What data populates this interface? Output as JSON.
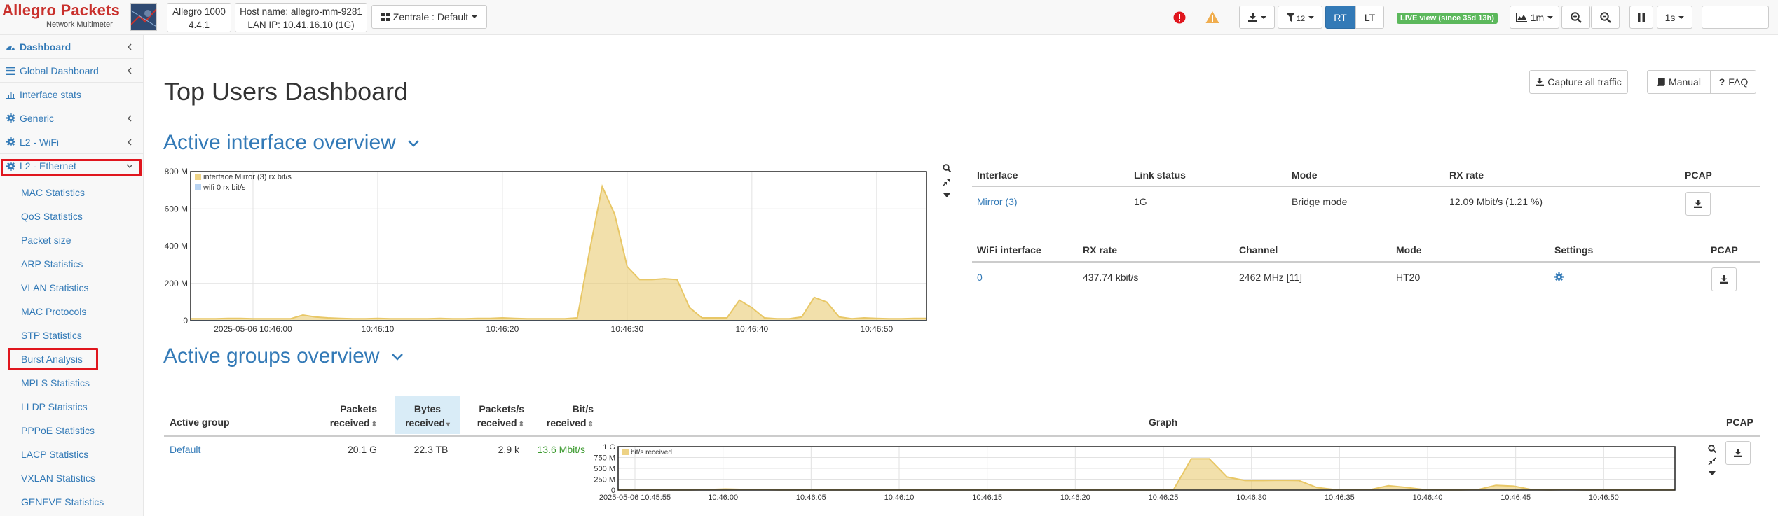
{
  "app": {
    "logo_title": "Allegro Packets",
    "logo_subtitle": "Network Multimeter",
    "device_model": "Allegro 1000",
    "device_version": "4.4.1",
    "host_name": "Host name: allegro-mm-9281",
    "lan_ip": "LAN IP: 10.41.16.10 (1G)",
    "zone_label": "Zentrale : Default"
  },
  "toolbar": {
    "filter_count": "12",
    "rt_label": "RT",
    "lt_label": "LT",
    "live_label": "LIVE view (since 35d 13h)",
    "range_label": "1m",
    "interval_label": "1s",
    "search_value": "",
    "error_color": "#e0161e",
    "warning_color": "#f0ad4e"
  },
  "sidebar": {
    "items": [
      {
        "label": "Dashboard",
        "icon": "dashboard-icon",
        "bold": true
      },
      {
        "label": "Global Dashboard",
        "icon": "list-icon"
      },
      {
        "label": "Interface stats",
        "icon": "bar-chart-icon"
      },
      {
        "label": "Generic",
        "icon": "gear-icon"
      },
      {
        "label": "L2 - WiFi",
        "icon": "gear-icon"
      },
      {
        "label": "L2 - Ethernet",
        "icon": "gear-icon"
      }
    ],
    "subitems": [
      "MAC Statistics",
      "QoS Statistics",
      "Packet size",
      "ARP Statistics",
      "VLAN Statistics",
      "MAC Protocols",
      "STP Statistics",
      "Burst Analysis",
      "MPLS Statistics",
      "LLDP Statistics",
      "PPPoE Statistics",
      "LACP Statistics",
      "VXLAN Statistics",
      "GENEVE Statistics"
    ],
    "highlight_color": "#e0161e"
  },
  "main": {
    "title": "Top Users Dashboard",
    "buttons": {
      "capture": "Capture all traffic",
      "manual": "Manual",
      "faq": "FAQ"
    },
    "interface_section": {
      "title": "Active interface overview",
      "table": {
        "headers": [
          "Interface",
          "Link status",
          "Mode",
          "RX rate",
          "PCAP"
        ],
        "rows": [
          {
            "interface": "Mirror (3)",
            "link": "1G",
            "mode": "Bridge mode",
            "rx": "12.09 Mbit/s (1.21 %)"
          }
        ]
      },
      "wifi_table": {
        "headers": [
          "WiFi interface",
          "RX rate",
          "Channel",
          "Mode",
          "Settings",
          "PCAP"
        ],
        "rows": [
          {
            "interface": "0",
            "rx": "437.74 kbit/s",
            "channel": "2462 MHz [11]",
            "mode": "HT20"
          }
        ]
      }
    },
    "groups_section": {
      "title": "Active groups overview",
      "headers": {
        "group": "Active group",
        "packets_l1": "Packets",
        "packets_l2": "received",
        "bytes_l1": "Bytes",
        "bytes_l2": "received",
        "pps_l1": "Packets/s",
        "pps_l2": "received",
        "bits_l1": "Bit/s",
        "bits_l2": "received",
        "graph": "Graph",
        "pcap": "PCAP"
      },
      "rows": [
        {
          "group": "Default",
          "packets": "20.1 G",
          "bytes": "22.3 TB",
          "pps": "2.9 k",
          "bits": "13.6 Mbit/s"
        }
      ],
      "bits_color": "#3c9a2f"
    }
  },
  "chart_data": [
    {
      "type": "area",
      "title": "",
      "legend": [
        "interface Mirror (3) rx bit/s",
        "wifi 0 rx bit/s"
      ],
      "legend_position": "top-left",
      "grid": true,
      "y_tick_labels": [
        "0",
        "200 M",
        "400 M",
        "600 M",
        "800 M"
      ],
      "ylim": [
        0,
        800000000
      ],
      "x_tick_labels": [
        "2025-05-06 10:46:00",
        "10:46:10",
        "10:46:20",
        "10:46:30",
        "10:46:40",
        "10:46:50"
      ],
      "x": [
        "10:45:55",
        "10:45:56",
        "10:45:57",
        "10:45:58",
        "10:45:59",
        "10:46:00",
        "10:46:01",
        "10:46:02",
        "10:46:03",
        "10:46:04",
        "10:46:05",
        "10:46:06",
        "10:46:07",
        "10:46:08",
        "10:46:09",
        "10:46:10",
        "10:46:11",
        "10:46:12",
        "10:46:13",
        "10:46:14",
        "10:46:15",
        "10:46:16",
        "10:46:17",
        "10:46:18",
        "10:46:19",
        "10:46:20",
        "10:46:21",
        "10:46:22",
        "10:46:23",
        "10:46:24",
        "10:46:25",
        "10:46:26",
        "10:46:27",
        "10:46:28",
        "10:46:29",
        "10:46:30",
        "10:46:31",
        "10:46:32",
        "10:46:33",
        "10:46:34",
        "10:46:35",
        "10:46:36",
        "10:46:37",
        "10:46:38",
        "10:46:39",
        "10:46:40",
        "10:46:41",
        "10:46:42",
        "10:46:43",
        "10:46:44",
        "10:46:45",
        "10:46:46",
        "10:46:47",
        "10:46:48",
        "10:46:49",
        "10:46:50",
        "10:46:51",
        "10:46:52",
        "10:46:53",
        "10:46:54"
      ],
      "series": [
        {
          "name": "interface Mirror (3) rx bit/s",
          "color": "#e8c766",
          "values": [
            10,
            10,
            10,
            12,
            12,
            10,
            10,
            10,
            10,
            30,
            20,
            15,
            12,
            10,
            10,
            12,
            10,
            10,
            10,
            10,
            12,
            10,
            10,
            12,
            12,
            15,
            12,
            10,
            10,
            10,
            10,
            15,
            380,
            720,
            570,
            290,
            220,
            220,
            225,
            220,
            70,
            15,
            15,
            15,
            110,
            70,
            15,
            10,
            10,
            20,
            125,
            100,
            20,
            10,
            15,
            12,
            10,
            10,
            12,
            12
          ],
          "unit": "Mbit/s"
        },
        {
          "name": "wifi 0 rx bit/s",
          "color": "#a6c8ef",
          "values": [
            0,
            0,
            0,
            0,
            0,
            0,
            0,
            0,
            0,
            0,
            0,
            0,
            0,
            0,
            0,
            0,
            0,
            0,
            0,
            0,
            0,
            0,
            0,
            0,
            0,
            0,
            0,
            0,
            0,
            0,
            0,
            0,
            0,
            0,
            0,
            0,
            0,
            0,
            0,
            0,
            0,
            0,
            0,
            0,
            0,
            0,
            0,
            0,
            0,
            0,
            0,
            0,
            0,
            0,
            0,
            0,
            0,
            0,
            0,
            0
          ],
          "unit": "Mbit/s"
        }
      ]
    },
    {
      "type": "area",
      "title": "",
      "legend": [
        "bit/s received"
      ],
      "legend_position": "top-left",
      "grid": true,
      "y_tick_labels": [
        "0",
        "250 M",
        "500 M",
        "750 M",
        "1 G"
      ],
      "ylim": [
        0,
        1000000000
      ],
      "x_tick_labels": [
        "2025-05-06 10:45:55",
        "10:46:00",
        "10:46:05",
        "10:46:10",
        "10:46:15",
        "10:46:20",
        "10:46:25",
        "10:46:30",
        "10:46:35",
        "10:46:40",
        "10:46:45",
        "10:46:50"
      ],
      "series": [
        {
          "name": "bit/s received",
          "color": "#e8c766",
          "values": [
            5,
            5,
            5,
            5,
            5,
            10,
            25,
            15,
            10,
            5,
            5,
            5,
            5,
            5,
            5,
            5,
            5,
            5,
            5,
            5,
            5,
            5,
            5,
            5,
            5,
            5,
            5,
            5,
            5,
            5,
            5,
            5,
            720,
            720,
            300,
            220,
            220,
            225,
            220,
            60,
            10,
            10,
            10,
            100,
            60,
            10,
            5,
            5,
            10,
            110,
            90,
            10,
            5,
            10,
            5,
            5,
            5,
            5,
            5,
            5
          ],
          "unit": "Mbit/s"
        }
      ]
    }
  ]
}
